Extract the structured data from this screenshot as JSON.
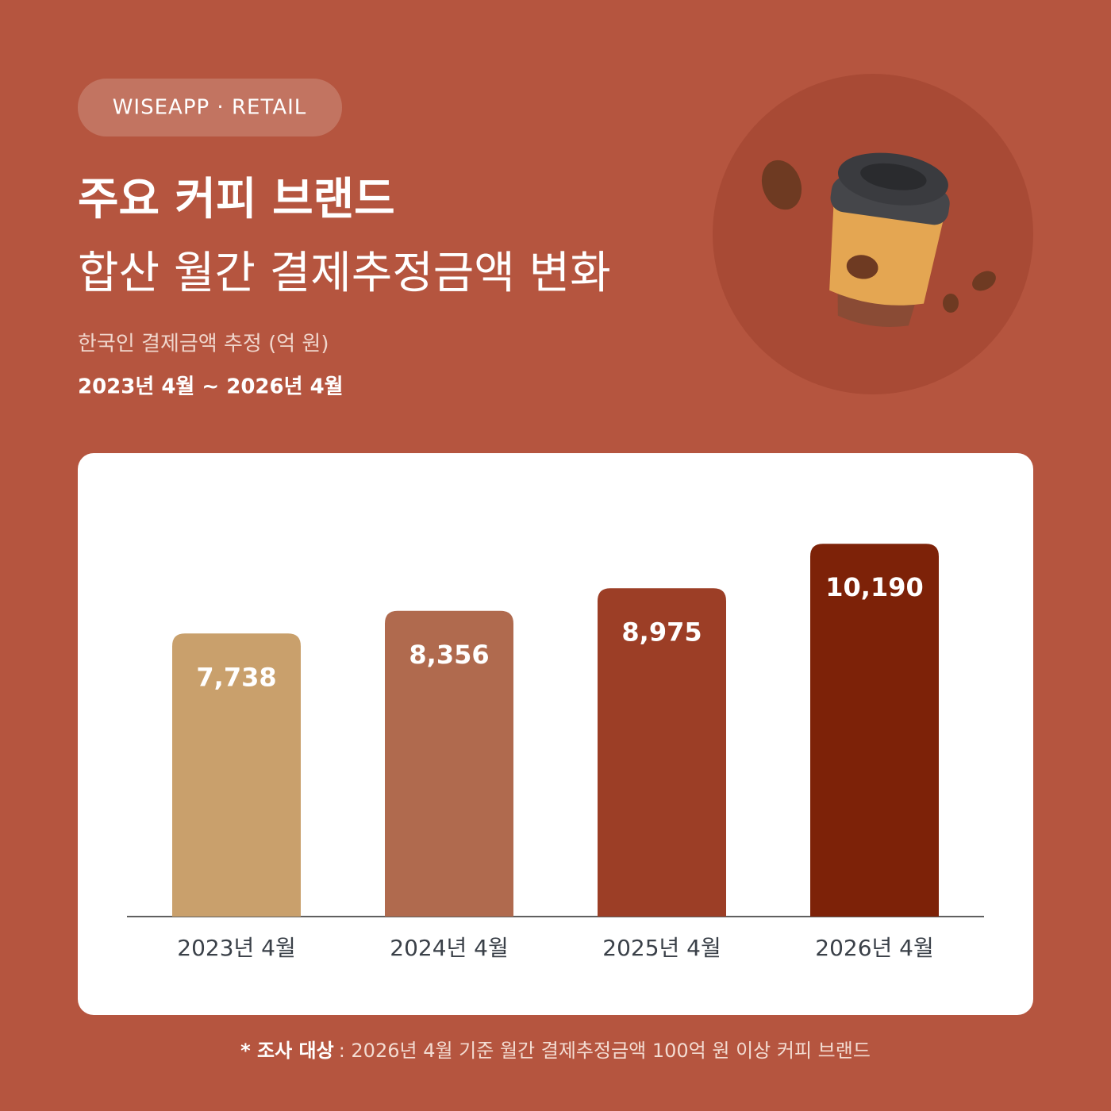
{
  "chart_data": {
    "type": "bar",
    "brand": "WISEAPP · RETAIL",
    "title": "주요 커피 브랜드",
    "subtitle": "합산 월간 결제추정금액 변화",
    "unit_note": "한국인 결제금액 추정 (억 원)",
    "period": "2023년 4월 ~ 2026년 4월",
    "categories": [
      "2023년 4월",
      "2024년 4월",
      "2025년 4월",
      "2026년 4월"
    ],
    "values": [
      7738,
      8356,
      8975,
      10190
    ],
    "value_labels": [
      "7,738",
      "8,356",
      "8,975",
      "10,190"
    ],
    "colors": [
      "#c9a06c",
      "#b06a4e",
      "#9c3e26",
      "#7d2208"
    ],
    "footnote_label": "* 조사 대상",
    "footnote": ": 2026년 4월 기준 월간 결제추정금액 100억 원 이상 커피 브랜드"
  }
}
